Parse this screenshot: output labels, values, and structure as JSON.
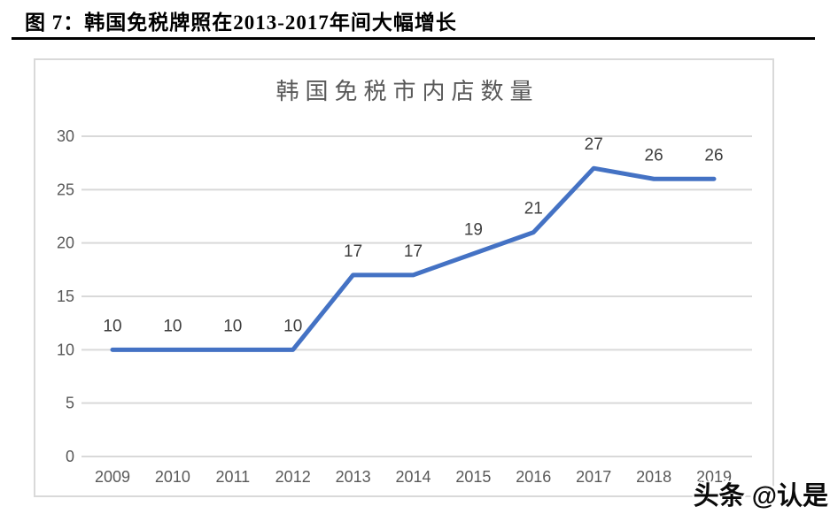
{
  "header": {
    "caption": "图 7：韩国免税牌照在2013-2017年间大幅增长"
  },
  "watermark": {
    "text": "头条 @认是"
  },
  "colors": {
    "line": "#4472C4",
    "grid": "#d9d9d9",
    "axis_label": "#595959",
    "data_label": "#404040",
    "chart_title": "#595959",
    "panel_border": "#d9d9d9",
    "caption_rule": "#000000"
  },
  "chart_data": {
    "type": "line",
    "title": "韩国免税市内店数量",
    "categories": [
      "2009",
      "2010",
      "2011",
      "2012",
      "2013",
      "2014",
      "2015",
      "2016",
      "2017",
      "2018",
      "2019"
    ],
    "values": [
      10,
      10,
      10,
      10,
      17,
      17,
      19,
      21,
      27,
      26,
      26
    ],
    "xlabel": "",
    "ylabel": "",
    "ylim": [
      0,
      30
    ],
    "yticks": [
      0,
      5,
      10,
      15,
      20,
      25,
      30
    ],
    "grid": true,
    "legend": false,
    "data_labels": true
  }
}
